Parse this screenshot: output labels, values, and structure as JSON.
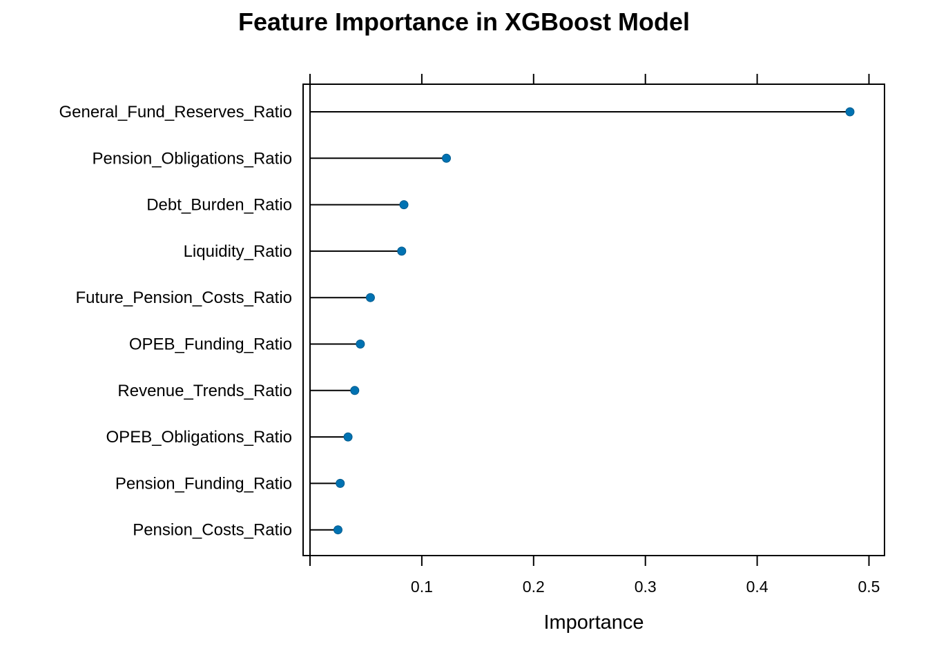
{
  "chart_data": {
    "type": "lollipop",
    "title": "Feature Importance in XGBoost Model",
    "xlabel": "Importance",
    "ylabel": "",
    "xlim": [
      0,
      0.5
    ],
    "x_ticks": [
      0.1,
      0.2,
      0.3,
      0.4,
      0.5
    ],
    "x_tick_labels": [
      "0.1",
      "0.2",
      "0.3",
      "0.4",
      "0.5"
    ],
    "categories": [
      "General_Fund_Reserves_Ratio",
      "Pension_Obligations_Ratio",
      "Debt_Burden_Ratio",
      "Liquidity_Ratio",
      "Future_Pension_Costs_Ratio",
      "OPEB_Funding_Ratio",
      "Revenue_Trends_Ratio",
      "OPEB_Obligations_Ratio",
      "Pension_Funding_Ratio",
      "Pension_Costs_Ratio"
    ],
    "values": [
      0.483,
      0.122,
      0.084,
      0.082,
      0.054,
      0.045,
      0.04,
      0.034,
      0.027,
      0.025
    ],
    "grid": false,
    "ticks_on_top_and_bottom": true,
    "colors": {
      "point": "#0072B2",
      "segment": "#000000",
      "frame": "#000000"
    }
  }
}
